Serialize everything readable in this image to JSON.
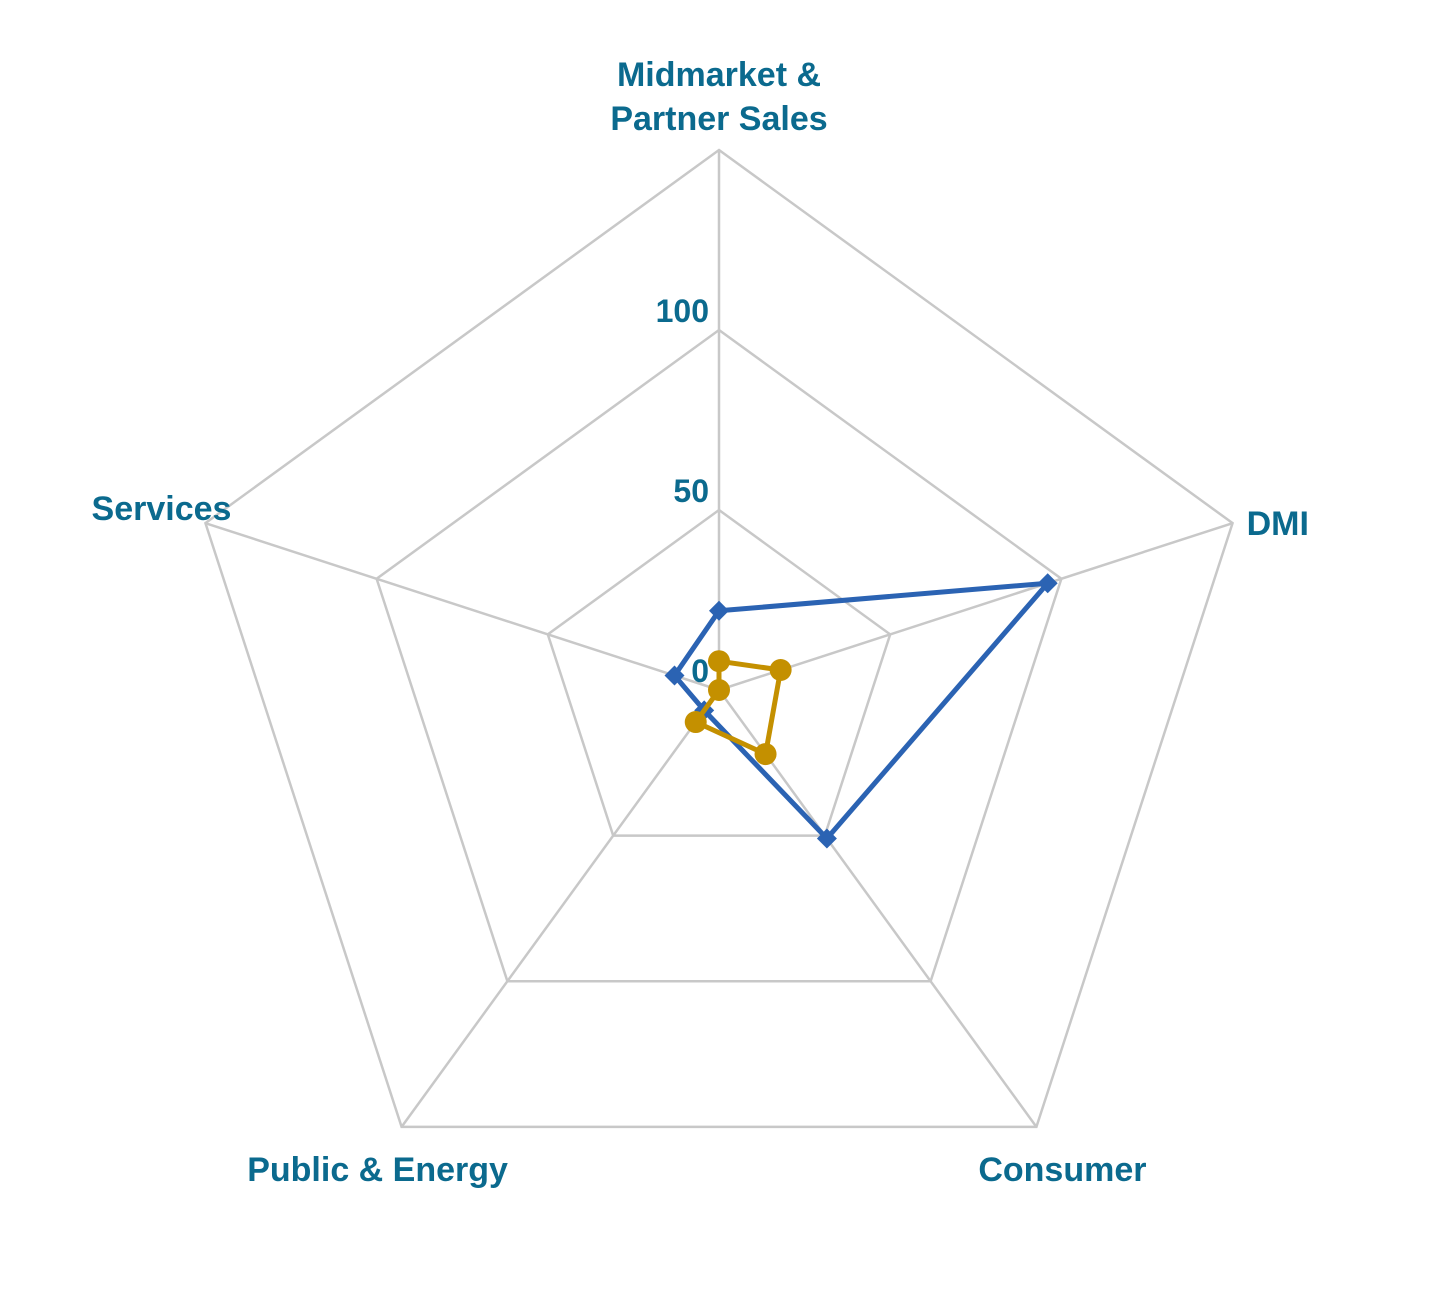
{
  "chart_data": {
    "type": "radar",
    "categories": [
      [
        "Midmarket &",
        "Partner Sales"
      ],
      [
        "DMI"
      ],
      [
        "Consumer"
      ],
      [
        "Public & Energy"
      ],
      [
        "Services"
      ]
    ],
    "rlim": [
      0,
      150
    ],
    "ticks": [
      0,
      50,
      100
    ],
    "grid": true,
    "series": [
      {
        "values": [
          22,
          96,
          51,
          7,
          13
        ],
        "color": "#2b63b3",
        "marker": "diamond"
      },
      {
        "values": [
          8,
          18,
          22,
          11,
          0
        ],
        "color": "#c49000",
        "marker": "circle"
      }
    ]
  }
}
